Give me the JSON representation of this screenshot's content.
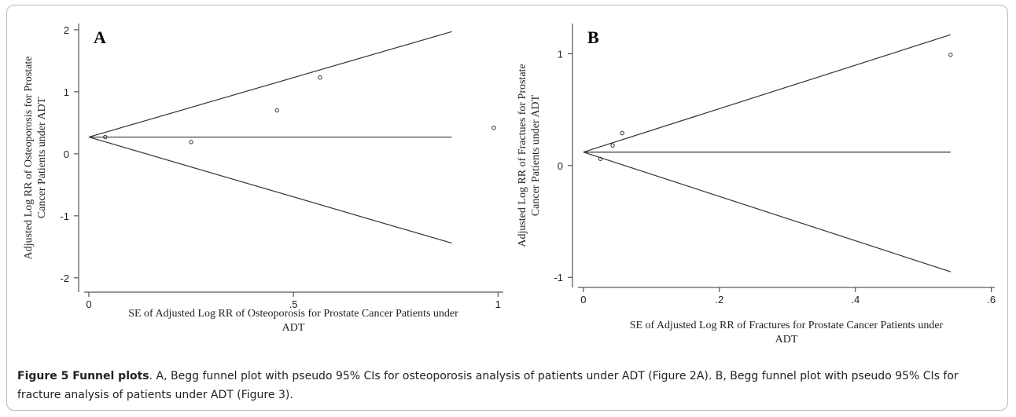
{
  "chart_data": [
    {
      "type": "scatter",
      "panel": "A",
      "xlabel": [
        "SE of Adjusted Log RR of Osteoporosis for Prostate Cancer Patients under",
        "ADT"
      ],
      "ylabel": [
        "Adjusted Log RR of Osteoporosis for Prostate",
        "Cancer Patients under ADT"
      ],
      "x": [
        0.04,
        0.25,
        0.46,
        0.565,
        0.99
      ],
      "values": [
        0.27,
        0.19,
        0.7,
        1.23,
        0.42
      ],
      "funnel": {
        "x": [
          0,
          0.887
        ],
        "upper": [
          0.27,
          1.97
        ],
        "center": [
          0.27,
          0.27
        ],
        "lower": [
          0.27,
          -1.44
        ]
      },
      "xlim": [
        -0.0115,
        1.013
      ],
      "ylim": [
        -2.23,
        2.1
      ],
      "xticks": [
        0,
        {
          "value": 0.5,
          "label": ".5"
        },
        1
      ],
      "yticks": [
        -2,
        -1,
        0,
        1,
        2
      ]
    },
    {
      "type": "scatter",
      "panel": "B",
      "xlabel": [
        "SE of Adjusted Log RR of Fractures for Prostate Cancer Patients under",
        "ADT"
      ],
      "ylabel": [
        "Adjusted Log RR of Fractues for Prostate",
        "Cancer Patients under ADT"
      ],
      "x": [
        0.025,
        0.043,
        0.057,
        0.54
      ],
      "values": [
        0.06,
        0.18,
        0.29,
        0.99
      ],
      "funnel": {
        "x": [
          0,
          0.54
        ],
        "upper": [
          0.12,
          1.17
        ],
        "center": [
          0.12,
          0.12
        ],
        "lower": [
          0.12,
          -0.95
        ]
      },
      "xlim": [
        -0.008,
        0.605
      ],
      "ylim": [
        -1.09,
        1.27
      ],
      "xticks": [
        0,
        {
          "value": 0.2,
          "label": ".2"
        },
        {
          "value": 0.4,
          "label": ".4"
        },
        {
          "value": 0.6,
          "label": ".6"
        }
      ],
      "yticks": [
        -1,
        0,
        1
      ]
    }
  ],
  "caption": {
    "title": "Figure 5 Funnel plots",
    "text": ". A, Begg funnel plot with pseudo 95% CIs for osteoporosis analysis of patients under ADT (Figure 2A). B, Begg funnel plot with pseudo 95% CIs for fracture analysis of patients under ADT (Figure 3)."
  }
}
